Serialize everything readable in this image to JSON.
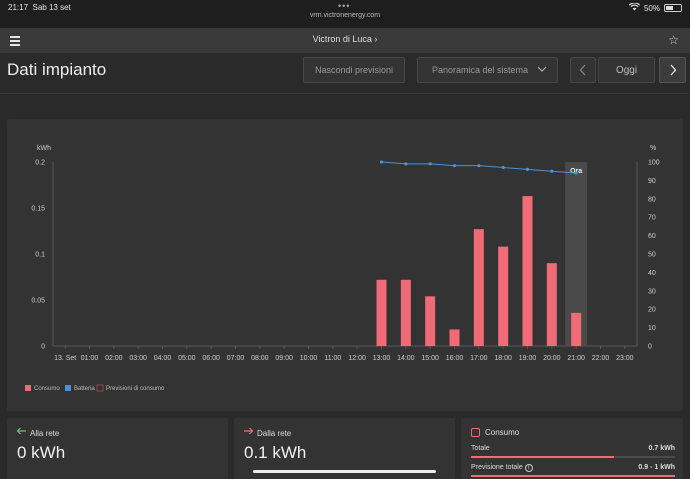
{
  "status_bar": {
    "time": "21:17",
    "date": "Sab 13 set",
    "url": "vrm.victronenergy.com",
    "battery": "50%"
  },
  "nav": {
    "title": "Victron di Luca ›"
  },
  "page": {
    "title": "Dati impianto",
    "hide_forecast": "Nascondi previsioni",
    "overview": "Panoramica del sistema",
    "today": "Oggi"
  },
  "colors": {
    "consumption": "#f06b75",
    "battery": "#4a90d9",
    "background": "#2a2a2a",
    "panel": "#333333"
  },
  "chart_data": {
    "type": "bar",
    "left_unit": "kWh",
    "right_unit": "%",
    "y_ticks": [
      "0",
      "0.05",
      "0.1",
      "0.15",
      "0.2"
    ],
    "right_ticks": [
      "0",
      "10",
      "20",
      "30",
      "40",
      "50",
      "60",
      "70",
      "80",
      "90",
      "100"
    ],
    "x_ticks": [
      "13. Set",
      "01:00",
      "02:00",
      "03:00",
      "04:00",
      "05:00",
      "06:00",
      "07:00",
      "08:00",
      "09:00",
      "10:00",
      "11:00",
      "12:00",
      "13:00",
      "14:00",
      "15:00",
      "16:00",
      "17:00",
      "18:00",
      "19:00",
      "20:00",
      "21:00",
      "22:00",
      "23:00"
    ],
    "ylim": [
      0,
      0.2
    ],
    "y2lim": [
      0,
      100
    ],
    "now_label": "Ora",
    "now_hour": 21,
    "series": [
      {
        "name": "Consumo",
        "kind": "bar",
        "hours": [
          13,
          14,
          15,
          16,
          17,
          18,
          19,
          20,
          21
        ],
        "values": [
          0.072,
          0.072,
          0.054,
          0.018,
          0.127,
          0.108,
          0.163,
          0.09,
          0.036
        ]
      },
      {
        "name": "Batteria",
        "kind": "line",
        "hours": [
          13,
          14,
          15,
          16,
          17,
          18,
          19,
          20,
          21
        ],
        "values": [
          100,
          99,
          99,
          98,
          98,
          97,
          96,
          95,
          94
        ]
      },
      {
        "name": "Previsioni di consumo",
        "kind": "forecast",
        "values": []
      }
    ],
    "legend": [
      "Consumo",
      "Batteria",
      "Previsioni di consumo"
    ],
    "legend_position": "bottom-left",
    "grid": false
  },
  "cards": {
    "to_grid": {
      "title": "Alla rete",
      "value": "0 kWh"
    },
    "from_grid": {
      "title": "Dalla rete",
      "value": "0.1 kWh"
    },
    "consumption": {
      "title": "Consumo",
      "total_label": "Totale",
      "total_value": "0.7 kWh",
      "forecast_label": "Previsione totale",
      "forecast_value": "0.9 - 1 kWh",
      "total_fill": 0.7,
      "forecast_fill": 1.0
    }
  }
}
